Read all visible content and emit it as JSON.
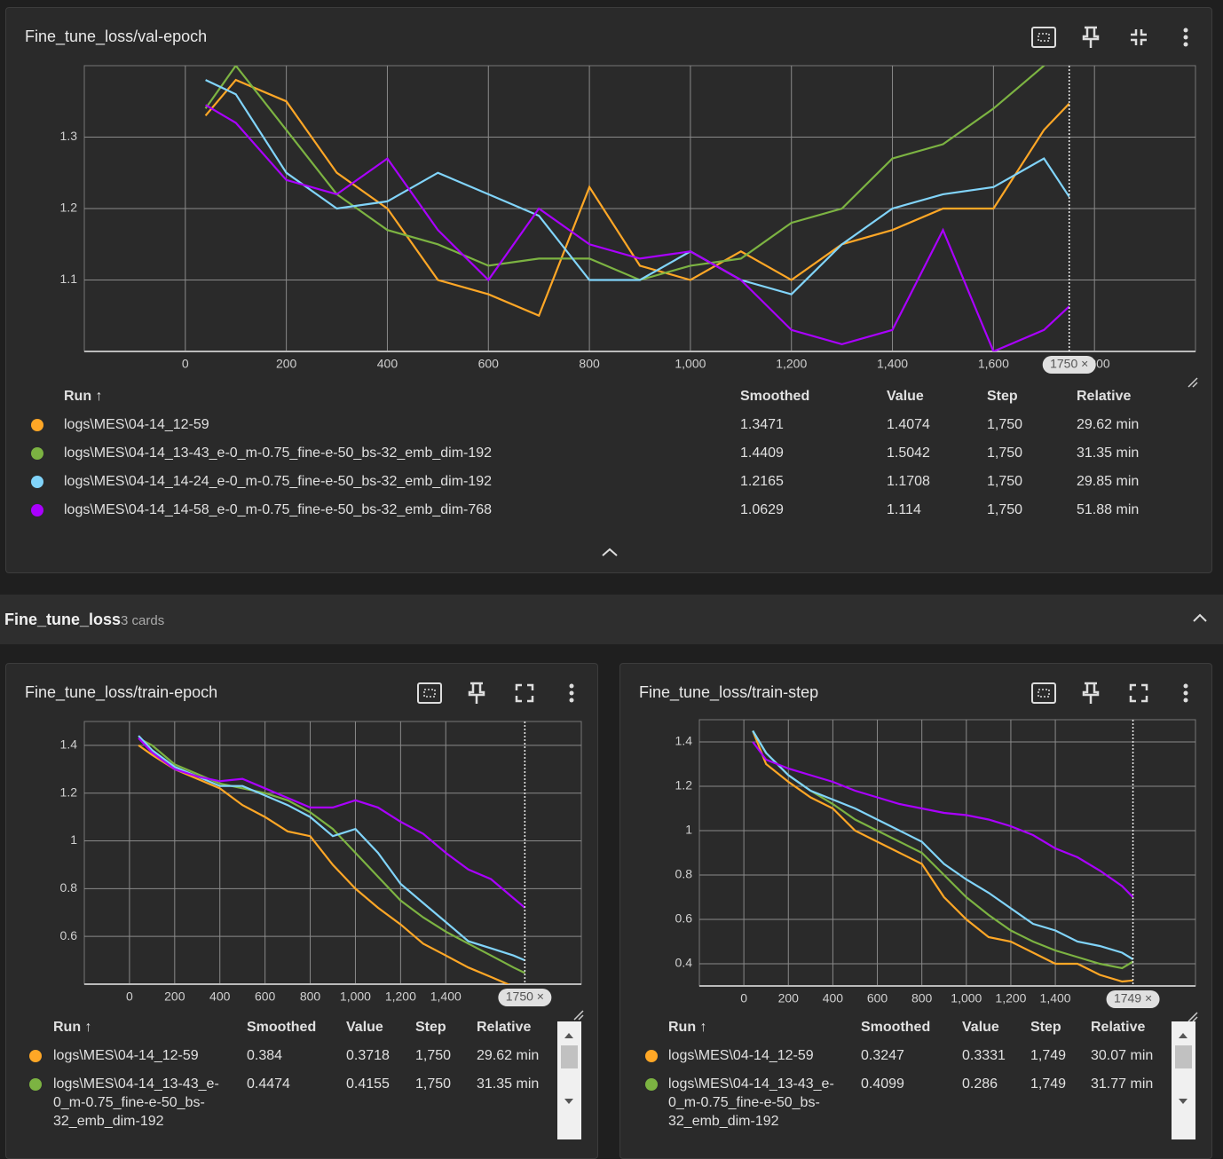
{
  "section": {
    "title": "Fine_tune_loss",
    "count": "3 cards"
  },
  "chart_data": [
    {
      "type": "line",
      "title": "Fine_tune_loss/val-epoch",
      "x": [
        40,
        100,
        200,
        300,
        400,
        500,
        600,
        700,
        800,
        900,
        1000,
        1100,
        1200,
        1300,
        1400,
        1500,
        1600,
        1700,
        1750
      ],
      "xlim": [
        -200,
        2000
      ],
      "ylim": [
        1.0,
        1.4
      ],
      "xticks": [
        0,
        200,
        400,
        600,
        800,
        {
          "value": 1000,
          "label": "1,000"
        },
        {
          "value": 1200,
          "label": "1,200"
        },
        {
          "value": 1400,
          "label": "1,400"
        },
        {
          "value": 1600,
          "label": "1,600"
        },
        {
          "value": 1800,
          "label": "1,800"
        }
      ],
      "yticks": [
        1.1,
        1.2,
        1.3
      ],
      "grid": true,
      "cursor": {
        "value": 1750,
        "label": "1750 ×"
      },
      "series": [
        {
          "name": "logs\\MES\\04-14_12-59",
          "color": "#ffa726",
          "values": [
            1.33,
            1.38,
            1.35,
            1.25,
            1.2,
            1.1,
            1.08,
            1.05,
            1.23,
            1.12,
            1.1,
            1.14,
            1.1,
            1.15,
            1.17,
            1.2,
            1.2,
            1.31,
            1.347
          ]
        },
        {
          "name": "logs\\MES\\04-14_13-43_e-0_m-0.75_fine-e-50_bs-32_emb_dim-192",
          "color": "#7cb342",
          "values": [
            1.34,
            1.4,
            1.31,
            1.22,
            1.17,
            1.15,
            1.12,
            1.13,
            1.13,
            1.1,
            1.12,
            1.13,
            1.18,
            1.2,
            1.27,
            1.29,
            1.34,
            1.4,
            1.44
          ]
        },
        {
          "name": "logs\\MES\\04-14_14-24_e-0_m-0.75_fine-e-50_bs-32_emb_dim-192",
          "color": "#81d4fa",
          "values": [
            1.38,
            1.36,
            1.25,
            1.2,
            1.21,
            1.25,
            1.22,
            1.19,
            1.1,
            1.1,
            1.14,
            1.1,
            1.08,
            1.15,
            1.2,
            1.22,
            1.23,
            1.27,
            1.2165
          ]
        },
        {
          "name": "logs\\MES\\04-14_14-58_e-0_m-0.75_fine-e-50_bs-32_emb_dim-768",
          "color": "#aa00ff",
          "values": [
            1.345,
            1.32,
            1.24,
            1.22,
            1.27,
            1.17,
            1.1,
            1.2,
            1.15,
            1.13,
            1.14,
            1.1,
            1.03,
            1.01,
            1.03,
            1.17,
            1.0,
            1.03,
            1.063
          ]
        }
      ],
      "run_table": {
        "headers": [
          "Run ↑",
          "Smoothed",
          "Value",
          "Step",
          "Relative"
        ],
        "rows": [
          [
            "1.3471",
            "1.4074",
            "1,750",
            "29.62 min"
          ],
          [
            "1.4409",
            "1.5042",
            "1,750",
            "31.35 min"
          ],
          [
            "1.2165",
            "1.1708",
            "1,750",
            "29.85 min"
          ],
          [
            "1.0629",
            "1.114",
            "1,750",
            "51.88 min"
          ]
        ]
      }
    },
    {
      "type": "line",
      "title": "Fine_tune_loss/train-epoch",
      "x": [
        40,
        100,
        200,
        300,
        400,
        500,
        600,
        700,
        800,
        900,
        1000,
        1100,
        1200,
        1300,
        1400,
        1500,
        1600,
        1700,
        1750
      ],
      "xlim": [
        -200,
        2000
      ],
      "ylim": [
        0.4,
        1.5
      ],
      "xticks": [
        0,
        200,
        400,
        600,
        800,
        {
          "value": 1000,
          "label": "1,000"
        },
        {
          "value": 1200,
          "label": "1,200"
        },
        {
          "value": 1400,
          "label": "1,400"
        }
      ],
      "yticks": [
        0.6,
        0.8,
        1,
        1.2,
        1.4
      ],
      "grid": true,
      "cursor": {
        "value": 1750,
        "label": "1750 ×"
      },
      "series": [
        {
          "name": "logs\\MES\\04-14_12-59",
          "color": "#ffa726",
          "values": [
            1.4,
            1.36,
            1.3,
            1.26,
            1.22,
            1.15,
            1.1,
            1.04,
            1.02,
            0.9,
            0.8,
            0.72,
            0.65,
            0.57,
            0.52,
            0.47,
            0.43,
            0.39,
            0.384
          ]
        },
        {
          "name": "logs\\MES\\04-14_13-43_e-0_m-0.75_fine-e-50_bs-32_emb_dim-192",
          "color": "#7cb342",
          "values": [
            1.43,
            1.4,
            1.32,
            1.28,
            1.24,
            1.22,
            1.2,
            1.17,
            1.12,
            1.05,
            0.95,
            0.85,
            0.75,
            0.68,
            0.62,
            0.57,
            0.52,
            0.47,
            0.447
          ]
        },
        {
          "name": "logs\\MES\\04-14_14-24_e-0_m-0.75_fine-e-50_bs-32_emb_dim-192",
          "color": "#81d4fa",
          "values": [
            1.44,
            1.38,
            1.31,
            1.27,
            1.23,
            1.23,
            1.19,
            1.15,
            1.1,
            1.02,
            1.05,
            0.95,
            0.82,
            0.74,
            0.66,
            0.58,
            0.55,
            0.52,
            0.5
          ]
        },
        {
          "name": "logs\\MES\\04-14_14-58_e-0_m-0.75_fine-e-50_bs-32_emb_dim-768",
          "color": "#aa00ff",
          "values": [
            1.43,
            1.37,
            1.3,
            1.27,
            1.25,
            1.26,
            1.22,
            1.18,
            1.14,
            1.14,
            1.17,
            1.14,
            1.08,
            1.03,
            0.95,
            0.88,
            0.84,
            0.76,
            0.72
          ]
        }
      ],
      "run_table": {
        "headers": [
          "Run ↑",
          "Smoothed",
          "Value",
          "Step",
          "Relative"
        ],
        "rows": [
          [
            "0.384",
            "0.3718",
            "1,750",
            "29.62 min"
          ],
          [
            "0.4474",
            "0.4155",
            "1,750",
            "31.35 min"
          ]
        ]
      }
    },
    {
      "type": "line",
      "title": "Fine_tune_loss/train-step",
      "x": [
        40,
        100,
        200,
        300,
        400,
        500,
        600,
        700,
        800,
        900,
        1000,
        1100,
        1200,
        1300,
        1400,
        1500,
        1600,
        1700,
        1749
      ],
      "xlim": [
        -200,
        2030
      ],
      "ylim": [
        0.3,
        1.5
      ],
      "xticks": [
        0,
        200,
        400,
        600,
        800,
        {
          "value": 1000,
          "label": "1,000"
        },
        {
          "value": 1200,
          "label": "1,200"
        },
        {
          "value": 1400,
          "label": "1,400"
        }
      ],
      "yticks": [
        0.4,
        0.6,
        0.8,
        1,
        1.2,
        1.4
      ],
      "grid": true,
      "cursor": {
        "value": 1749,
        "label": "1749 ×"
      },
      "series": [
        {
          "name": "logs\\MES\\04-14_12-59",
          "color": "#ffa726",
          "values": [
            1.45,
            1.3,
            1.22,
            1.15,
            1.1,
            1.0,
            0.95,
            0.9,
            0.85,
            0.7,
            0.6,
            0.52,
            0.5,
            0.45,
            0.4,
            0.4,
            0.35,
            0.32,
            0.325
          ]
        },
        {
          "name": "logs\\MES\\04-14_13-43_e-0_m-0.75_fine-e-50_bs-32_emb_dim-192",
          "color": "#7cb342",
          "values": [
            1.45,
            1.35,
            1.25,
            1.18,
            1.12,
            1.05,
            1.0,
            0.95,
            0.9,
            0.8,
            0.7,
            0.62,
            0.55,
            0.5,
            0.46,
            0.43,
            0.4,
            0.38,
            0.41
          ]
        },
        {
          "name": "logs\\MES\\04-14_14-24_e-0_m-0.75_fine-e-50_bs-32_emb_dim-192",
          "color": "#81d4fa",
          "values": [
            1.45,
            1.35,
            1.25,
            1.18,
            1.14,
            1.1,
            1.05,
            1.0,
            0.95,
            0.85,
            0.78,
            0.72,
            0.65,
            0.58,
            0.55,
            0.5,
            0.48,
            0.45,
            0.42
          ]
        },
        {
          "name": "logs\\MES\\04-14_14-58_e-0_m-0.75_fine-e-50_bs-32_emb_dim-768",
          "color": "#aa00ff",
          "values": [
            1.4,
            1.32,
            1.28,
            1.25,
            1.22,
            1.18,
            1.15,
            1.12,
            1.1,
            1.08,
            1.07,
            1.05,
            1.02,
            0.98,
            0.92,
            0.88,
            0.82,
            0.75,
            0.7
          ]
        }
      ],
      "run_table": {
        "headers": [
          "Run ↑",
          "Smoothed",
          "Value",
          "Step",
          "Relative"
        ],
        "rows": [
          [
            "0.3247",
            "0.3331",
            "1,749",
            "30.07 min"
          ],
          [
            "0.4099",
            "0.286",
            "1,749",
            "31.77 min"
          ]
        ]
      }
    }
  ]
}
